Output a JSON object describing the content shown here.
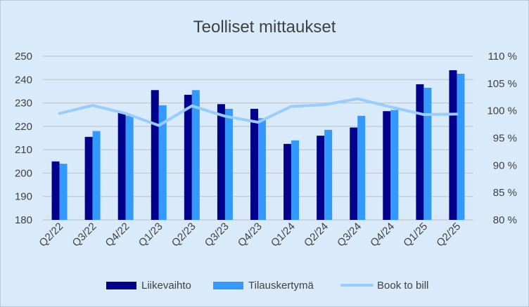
{
  "chart_data": {
    "type": "bar",
    "title": "Teolliset mittaukset",
    "categories": [
      "Q2/22",
      "Q3/22",
      "Q4/22",
      "Q1/23",
      "Q2/23",
      "Q3/23",
      "Q4/23",
      "Q1/24",
      "Q2/24",
      "Q3/24",
      "Q4/24",
      "Q1/25",
      "Q2/25"
    ],
    "series": [
      {
        "name": "Liikevaihto",
        "type": "bar",
        "axis": "left",
        "color": "#00008b",
        "values": [
          205,
          215.5,
          226,
          235.5,
          233.5,
          229.5,
          227.5,
          212.5,
          216,
          219.5,
          226.5,
          238,
          244
        ]
      },
      {
        "name": "Tilauskertymä",
        "type": "bar",
        "axis": "left",
        "color": "#3399ff",
        "values": [
          204,
          218,
          224.5,
          229,
          235.5,
          227.5,
          223.5,
          214,
          218.5,
          224.5,
          227,
          236.5,
          242.5
        ]
      },
      {
        "name": "Book to bill",
        "type": "line",
        "axis": "right",
        "color": "#99ccff",
        "values": [
          99.5,
          101,
          99.5,
          97.3,
          100.9,
          99,
          97.9,
          100.8,
          101.1,
          102.2,
          100.7,
          99.3,
          99.4
        ]
      }
    ],
    "y_left": {
      "min": 180,
      "max": 250,
      "step": 10,
      "ticks": [
        "180",
        "190",
        "200",
        "210",
        "220",
        "230",
        "240",
        "250"
      ]
    },
    "y_right": {
      "min": 80,
      "max": 110,
      "step": 5,
      "ticks": [
        "80 %",
        "85 %",
        "90 %",
        "95 %",
        "100 %",
        "105 %",
        "110 %"
      ]
    },
    "grid": "horizontal",
    "legend": "bottom"
  }
}
